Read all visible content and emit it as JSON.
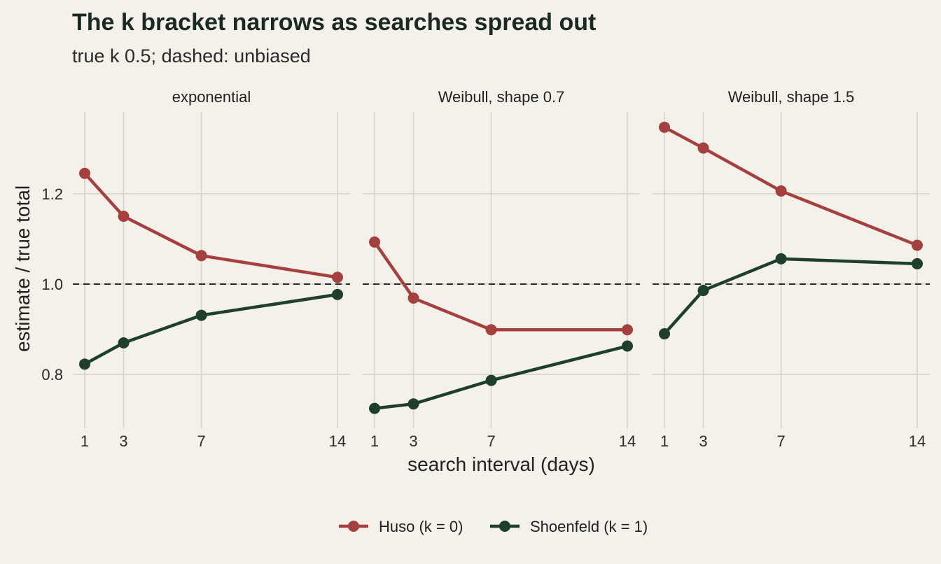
{
  "chart_data": {
    "type": "line",
    "title": "The k bracket narrows as searches spread out",
    "subtitle": "true k 0.5; dashed: unbiased",
    "xlabel": "search interval (days)",
    "ylabel": "estimate / true total",
    "x": [
      1,
      3,
      7,
      14
    ],
    "x_ticks": [
      "1",
      "3",
      "7",
      "14"
    ],
    "y_ticks": [
      "0.8",
      "1.0",
      "1.2"
    ],
    "ylim": [
      0.7,
      1.39
    ],
    "reference_line": 1.0,
    "grid": true,
    "legend_position": "bottom",
    "series_meta": [
      {
        "name": "Huso (k = 0)",
        "color": "#A6403F"
      },
      {
        "name": "Shoenfeld (k = 1)",
        "color": "#1E3F2D"
      }
    ],
    "panels": [
      {
        "label": "exponential",
        "series": [
          {
            "name": "Huso (k = 0)",
            "values": [
              1.245,
              1.15,
              1.063,
              1.015
            ]
          },
          {
            "name": "Shoenfeld (k = 1)",
            "values": [
              0.823,
              0.87,
              0.931,
              0.977
            ]
          }
        ]
      },
      {
        "label": "Weibull, shape 0.7",
        "series": [
          {
            "name": "Huso (k = 0)",
            "values": [
              1.093,
              0.969,
              0.899,
              0.899
            ]
          },
          {
            "name": "Shoenfeld (k = 1)",
            "values": [
              0.725,
              0.735,
              0.787,
              0.863
            ]
          }
        ]
      },
      {
        "label": "Weibull, shape 1.5",
        "series": [
          {
            "name": "Huso (k = 0)",
            "values": [
              1.347,
              1.301,
              1.206,
              1.086
            ]
          },
          {
            "name": "Shoenfeld (k = 1)",
            "values": [
              0.89,
              0.986,
              1.056,
              1.045
            ]
          }
        ]
      }
    ]
  }
}
